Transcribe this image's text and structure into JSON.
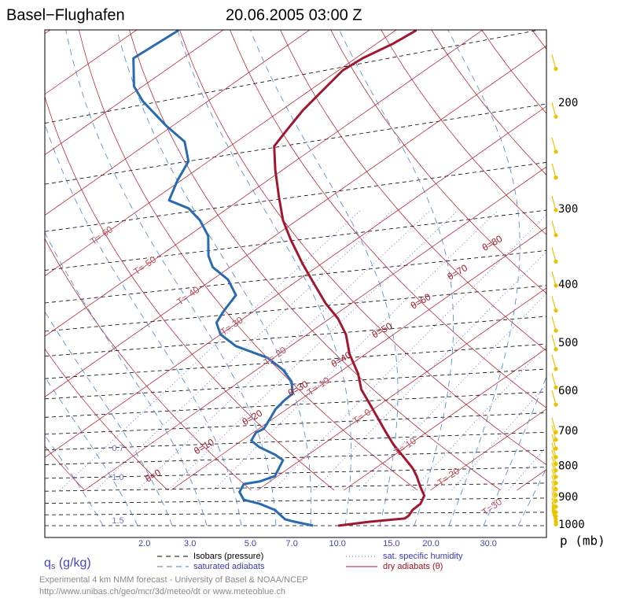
{
  "chart_data": {
    "type": "skewt",
    "title": "Basel−Flughafen",
    "subtitle": "20.06.2005 03:00 Z",
    "yticks": [
      200,
      300,
      400,
      500,
      600,
      700,
      800,
      900,
      1000
    ],
    "ylabel": "p (mb)",
    "mixing_ratio_label": "q",
    "mixing_ratio_label_sub": "s",
    "mixing_ratio_label_unit": " (g/kg)",
    "mixing_ratios": [
      {
        "value": 0.7,
        "label": "0.7"
      },
      {
        "value": 1.0,
        "label": "1.0"
      },
      {
        "value": 1.5,
        "label": "1.5"
      },
      {
        "value": 2.0,
        "label": "2.0"
      },
      {
        "value": 3.0,
        "label": "3.0"
      },
      {
        "value": 5.0,
        "label": "5.0"
      },
      {
        "value": 7.0,
        "label": "7.0"
      },
      {
        "value": 10.0,
        "label": "10.0"
      },
      {
        "value": 15.0,
        "label": "15.0"
      },
      {
        "value": 20.0,
        "label": "20.0"
      },
      {
        "value": 30.0,
        "label": "30.0"
      }
    ],
    "isotherm_labels": [
      {
        "value": -60,
        "label": "T=-60"
      },
      {
        "value": -50,
        "label": "T=-50"
      },
      {
        "value": -40,
        "label": "T=-40"
      },
      {
        "value": -30,
        "label": "T=-30"
      },
      {
        "value": -20,
        "label": "T=-20"
      },
      {
        "value": -10,
        "label": "T=-10"
      },
      {
        "value": 0,
        "label": "T= 0"
      },
      {
        "value": 10,
        "label": "T= 10"
      },
      {
        "value": 20,
        "label": "T= 20"
      },
      {
        "value": 30,
        "label": "T=30"
      }
    ],
    "theta_labels": [
      {
        "value": 0,
        "label": "θ=0"
      },
      {
        "value": 10,
        "label": "θ=10"
      },
      {
        "value": 20,
        "label": "θ=20"
      },
      {
        "value": 30,
        "label": "θ=30"
      },
      {
        "value": 40,
        "label": "θ=40"
      },
      {
        "value": 50,
        "label": "θ=50"
      },
      {
        "value": 60,
        "label": "θ=60"
      },
      {
        "value": 70,
        "label": "θ=70"
      },
      {
        "value": 80,
        "label": "θ=80"
      }
    ],
    "legend": [
      "Isobars (pressure)",
      "saturated adiabats",
      "sat. specific humidity",
      "dry adiabats (θ)"
    ],
    "footer": [
      "Experimental 4 km NMM forecast  - University of Basel & NOAA/NCEP",
      "http://www.unibas.ch/geo/mcr/3d/meteo/dt   or   www.meteoblue.ch"
    ],
    "temperature": {
      "color": "#a01830",
      "p": [
        1000,
        985,
        973,
        962,
        942,
        920,
        892,
        861,
        828,
        803,
        775,
        734,
        697,
        661,
        628,
        595,
        560,
        520,
        482,
        454,
        428,
        397,
        368,
        336,
        312,
        285,
        257,
        235,
        221,
        205,
        190,
        176,
        168,
        159,
        151
      ],
      "t": [
        15.2,
        18.2,
        21.7,
        21.7,
        21.2,
        21.1,
        20.2,
        18.2,
        16.1,
        14.3,
        11.9,
        8.2,
        5.0,
        1.8,
        -1.3,
        -4.6,
        -7.6,
        -11.8,
        -15.5,
        -19.0,
        -23.0,
        -27.6,
        -32.2,
        -37.5,
        -41.6,
        -46.0,
        -50.9,
        -54.9,
        -56.1,
        -57.5,
        -58.5,
        -59.5,
        -59.2,
        -58.1,
        -57.6
      ]
    },
    "dewpoint": {
      "color": "#2a6aae",
      "p": [
        1000,
        985,
        976,
        962,
        942,
        920,
        906,
        879,
        853,
        845,
        828,
        779,
        763,
        741,
        723,
        701,
        691,
        661,
        641,
        622,
        604,
        577,
        552,
        527,
        504,
        482,
        461,
        441,
        415,
        391,
        373,
        357,
        331,
        312,
        298,
        289,
        268,
        249,
        231,
        217,
        198,
        187,
        168,
        151
      ],
      "t": [
        12.3,
        9.5,
        8.0,
        6.9,
        5.3,
        2.5,
        0.0,
        -1.8,
        -2.6,
        -1.2,
        -0.3,
        -2.0,
        -3.8,
        -6.9,
        -8.9,
        -9.7,
        -9.4,
        -10.5,
        -11.3,
        -11.7,
        -11.9,
        -14.0,
        -16.9,
        -20.7,
        -26.3,
        -30.0,
        -32.4,
        -33.5,
        -34.7,
        -38.2,
        -42.0,
        -44.4,
        -47.7,
        -51.2,
        -54.5,
        -58.1,
        -60.4,
        -62.3,
        -66.0,
        -70.9,
        -77.5,
        -81.0,
        -85.7,
        -85.1
      ]
    },
    "wind_color": "#e8c400",
    "wind_levels": [
      175,
      210,
      240,
      265,
      300,
      330,
      365,
      400,
      440,
      475,
      510,
      550,
      590,
      630,
      700,
      720,
      745,
      770,
      790,
      810,
      830,
      850,
      870,
      890,
      910,
      930,
      950,
      965,
      975,
      985,
      995
    ]
  }
}
